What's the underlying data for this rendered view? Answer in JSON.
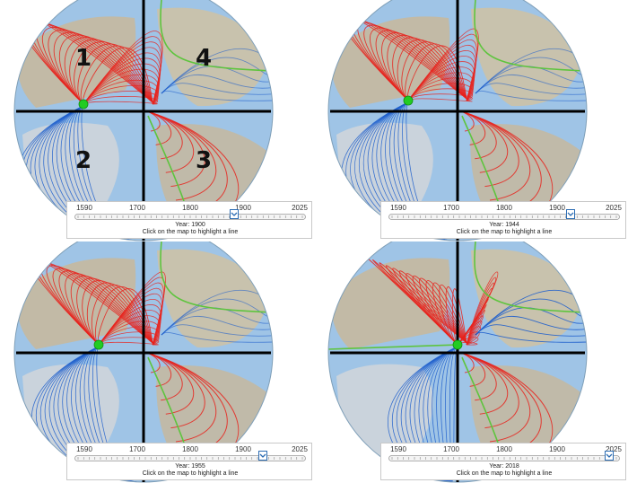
{
  "panels": [
    {
      "id": "p1900",
      "year_text": "Year: 1900",
      "year_value": 1900,
      "pole": "green-dot-left"
    },
    {
      "id": "p1944",
      "year_text": "Year: 1944",
      "year_value": 1944,
      "pole": "green-dot-left"
    },
    {
      "id": "p1955",
      "year_text": "Year: 1955",
      "year_value": 1955,
      "pole": "green-dot-center"
    },
    {
      "id": "p2018",
      "year_text": "Year: 2018",
      "year_value": 2018,
      "pole": "green-dot-origin"
    }
  ],
  "slider": {
    "tick_labels": [
      "1590",
      "1700",
      "1800",
      "1900",
      "2025"
    ],
    "min": 1590,
    "max": 2025,
    "hint": "Click on the map to highlight a line"
  },
  "quadrants": [
    "1",
    "2",
    "3",
    "4"
  ],
  "colors": {
    "red_lines": "#e8221c",
    "blue_lines": "#1f5fcc",
    "green_lines": "#5ec43e",
    "pole_dot": "#22cc22",
    "axis": "#000000",
    "ocean": "#9fc4e6",
    "land": "#c8b89a"
  },
  "icons": {
    "thumb": "slider-thumb-chevron-icon"
  }
}
